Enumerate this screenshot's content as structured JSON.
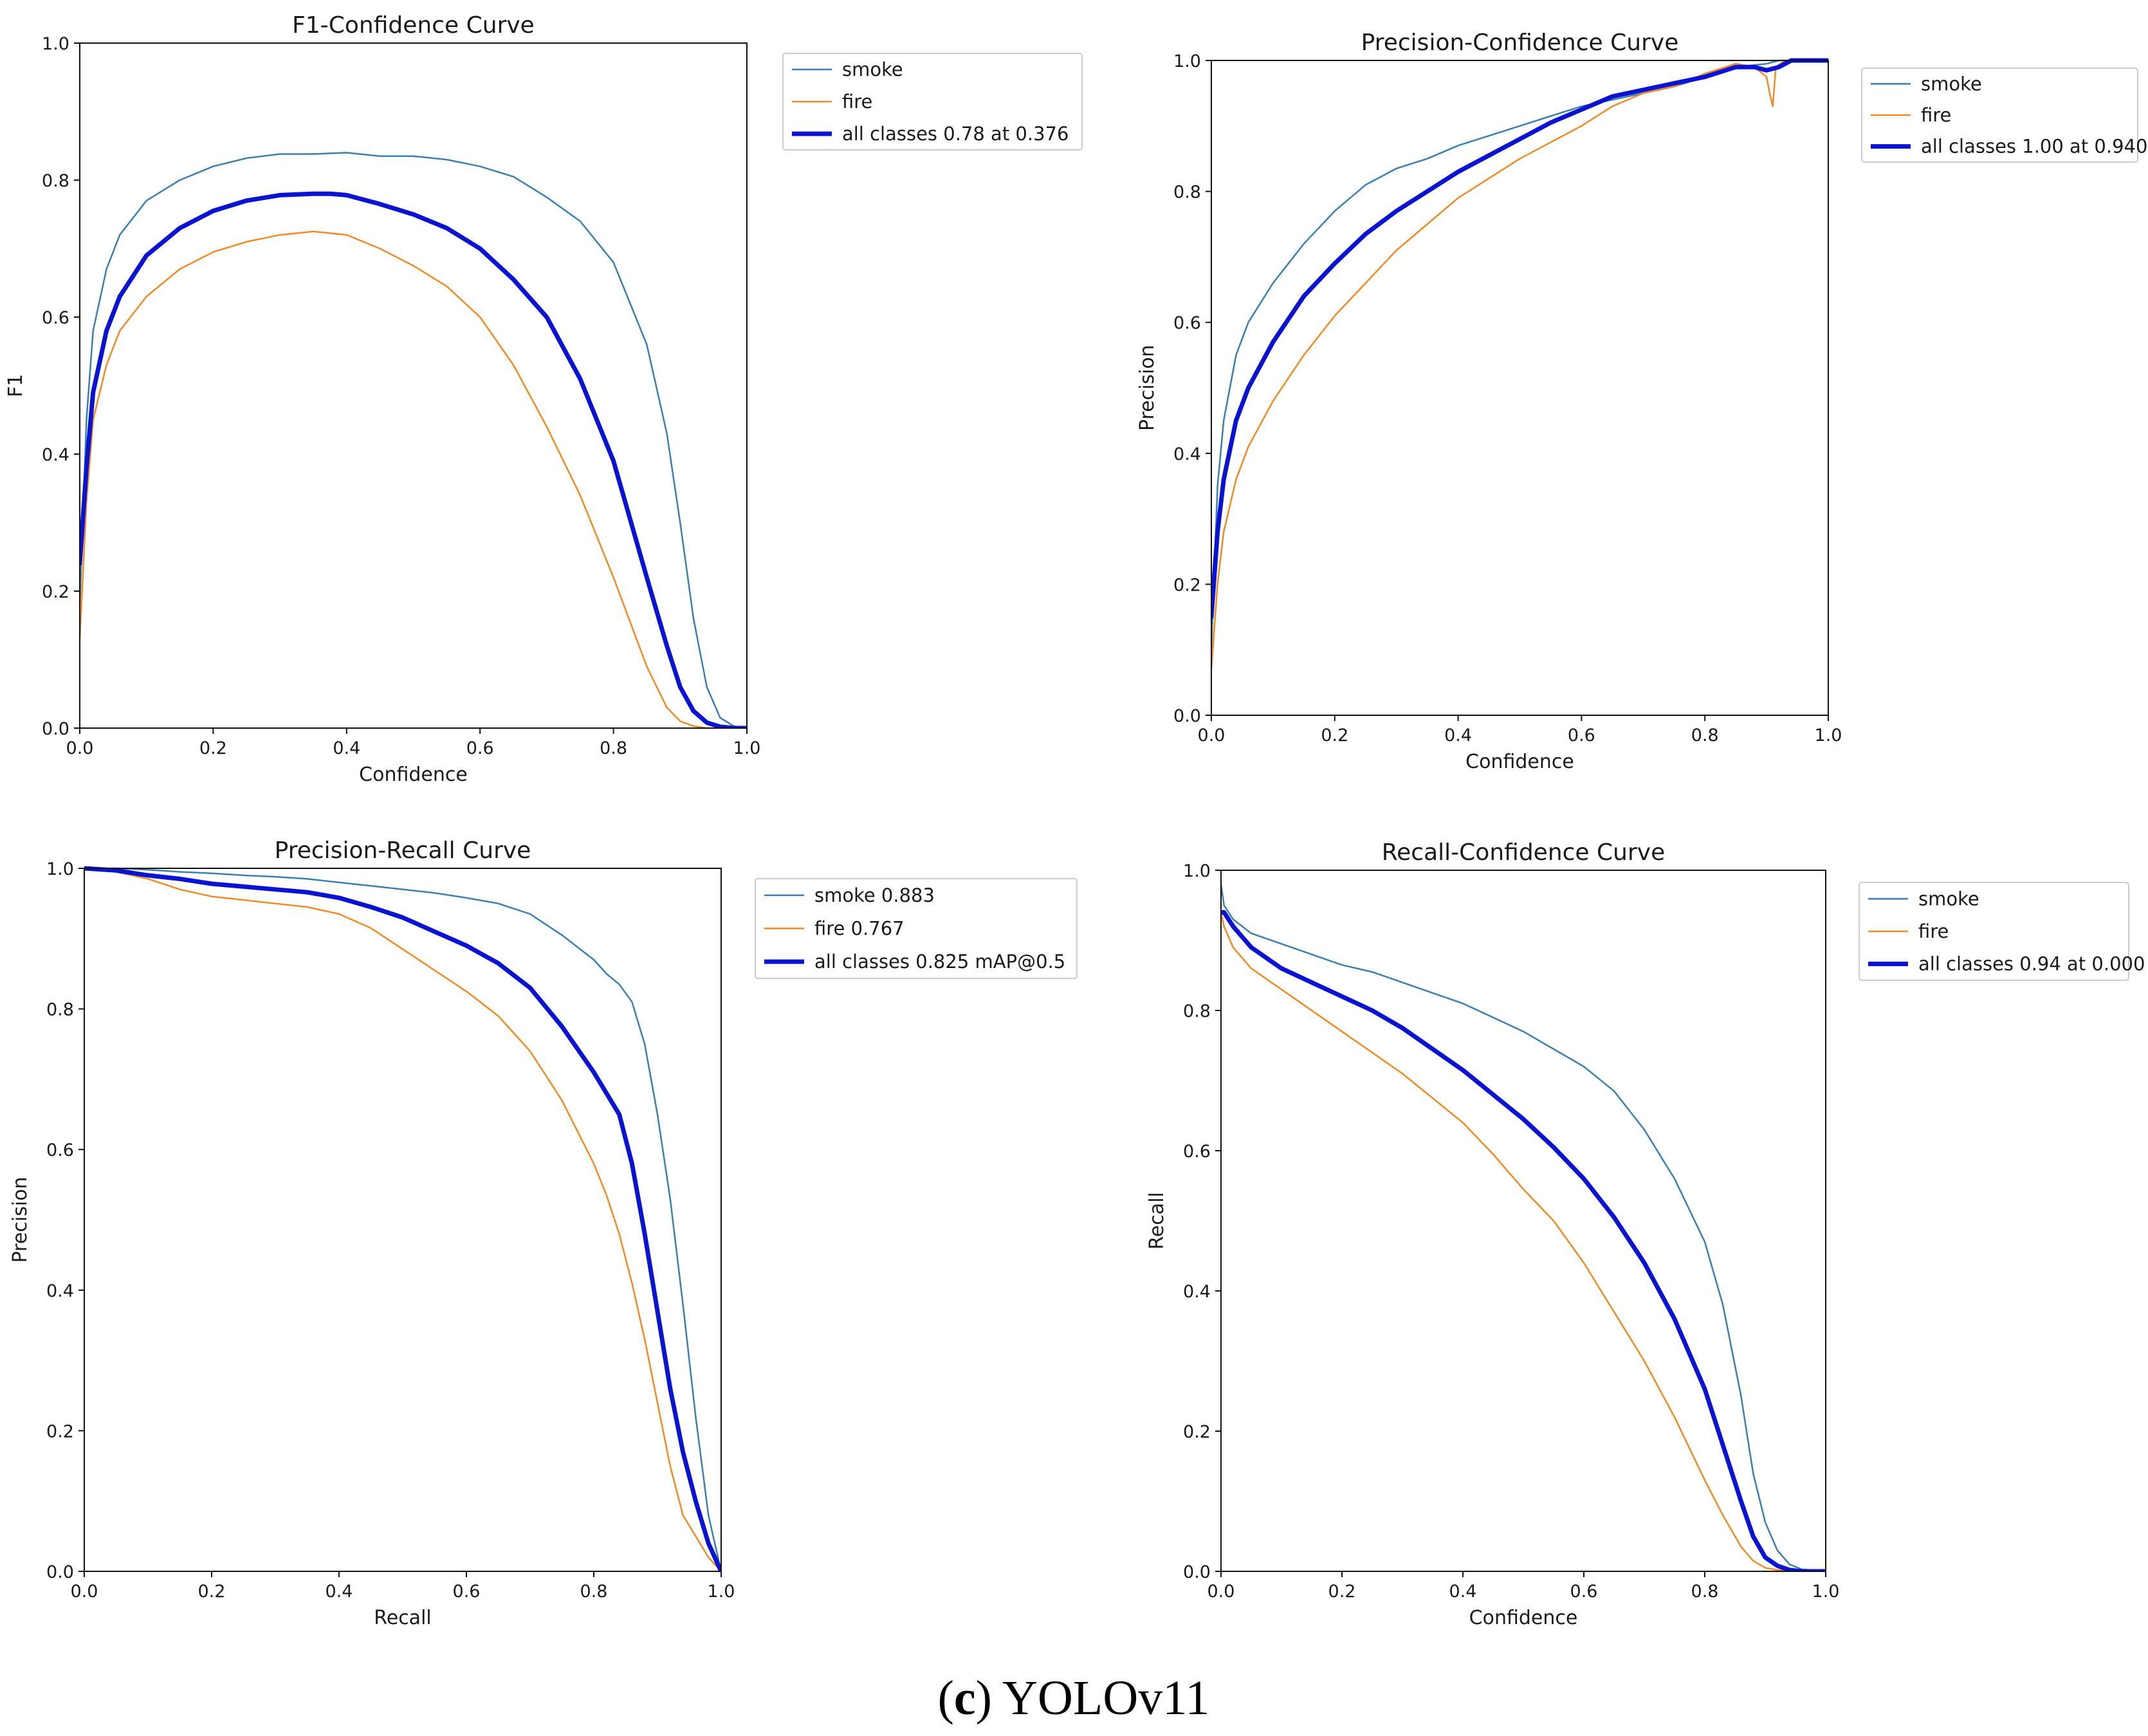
{
  "caption": {
    "open": "(",
    "letter": "c",
    "rest": ") YOLOv11"
  },
  "colors": {
    "smoke": "#3b7fb0",
    "fire": "#f08a24",
    "all_classes": "#0a14d0",
    "axis": "#111111"
  },
  "chart_data": [
    {
      "id": "f1",
      "type": "line",
      "title": "F1-Confidence Curve",
      "xlabel": "Confidence",
      "ylabel": "F1",
      "xlim": [
        0,
        1
      ],
      "ylim": [
        0,
        1
      ],
      "xticks": [
        "0.0",
        "0.2",
        "0.4",
        "0.6",
        "0.8",
        "1.0"
      ],
      "yticks": [
        "0.0",
        "0.2",
        "0.4",
        "0.6",
        "0.8",
        "1.0"
      ],
      "legend_position": "outside-top-right",
      "series": [
        {
          "name": "smoke",
          "legend": "smoke",
          "color_key": "smoke",
          "width": 2.5,
          "x": [
            0,
            0.01,
            0.02,
            0.04,
            0.06,
            0.1,
            0.15,
            0.2,
            0.25,
            0.3,
            0.35,
            0.4,
            0.45,
            0.5,
            0.55,
            0.6,
            0.65,
            0.7,
            0.75,
            0.8,
            0.85,
            0.88,
            0.9,
            0.92,
            0.94,
            0.96,
            0.98,
            1.0
          ],
          "y": [
            0.18,
            0.45,
            0.58,
            0.67,
            0.72,
            0.77,
            0.8,
            0.82,
            0.832,
            0.838,
            0.838,
            0.84,
            0.835,
            0.835,
            0.83,
            0.82,
            0.805,
            0.775,
            0.74,
            0.68,
            0.56,
            0.43,
            0.3,
            0.16,
            0.06,
            0.015,
            0.003,
            0
          ]
        },
        {
          "name": "fire",
          "legend": "fire",
          "color_key": "fire",
          "width": 2.5,
          "x": [
            0,
            0.01,
            0.02,
            0.04,
            0.06,
            0.1,
            0.15,
            0.2,
            0.25,
            0.3,
            0.35,
            0.4,
            0.45,
            0.5,
            0.55,
            0.6,
            0.65,
            0.7,
            0.75,
            0.8,
            0.85,
            0.88,
            0.9,
            0.92,
            0.94,
            0.96,
            1.0
          ],
          "y": [
            0.13,
            0.33,
            0.45,
            0.53,
            0.58,
            0.63,
            0.67,
            0.695,
            0.71,
            0.72,
            0.725,
            0.72,
            0.7,
            0.675,
            0.645,
            0.6,
            0.53,
            0.44,
            0.34,
            0.22,
            0.09,
            0.03,
            0.01,
            0.003,
            0,
            0,
            0
          ]
        },
        {
          "name": "all classes",
          "legend": "all classes 0.78 at 0.376",
          "color_key": "all_classes",
          "width": 7,
          "x": [
            0,
            0.01,
            0.02,
            0.04,
            0.06,
            0.1,
            0.15,
            0.2,
            0.25,
            0.3,
            0.35,
            0.376,
            0.4,
            0.45,
            0.5,
            0.55,
            0.6,
            0.65,
            0.7,
            0.75,
            0.8,
            0.85,
            0.88,
            0.9,
            0.92,
            0.94,
            0.96,
            0.98,
            1.0
          ],
          "y": [
            0.24,
            0.38,
            0.49,
            0.58,
            0.63,
            0.69,
            0.73,
            0.755,
            0.77,
            0.778,
            0.78,
            0.78,
            0.778,
            0.765,
            0.75,
            0.73,
            0.7,
            0.655,
            0.6,
            0.51,
            0.39,
            0.22,
            0.12,
            0.06,
            0.025,
            0.008,
            0.002,
            0,
            0
          ]
        }
      ]
    },
    {
      "id": "precision",
      "type": "line",
      "title": "Precision-Confidence Curve",
      "xlabel": "Confidence",
      "ylabel": "Precision",
      "xlim": [
        0,
        1
      ],
      "ylim": [
        0,
        1
      ],
      "xticks": [
        "0.0",
        "0.2",
        "0.4",
        "0.6",
        "0.8",
        "1.0"
      ],
      "yticks": [
        "0.0",
        "0.2",
        "0.4",
        "0.6",
        "0.8",
        "1.0"
      ],
      "legend_position": "outside-top-right",
      "series": [
        {
          "name": "smoke",
          "legend": "smoke",
          "color_key": "smoke",
          "width": 2.5,
          "x": [
            0,
            0.01,
            0.02,
            0.04,
            0.06,
            0.1,
            0.15,
            0.2,
            0.25,
            0.3,
            0.35,
            0.4,
            0.45,
            0.5,
            0.55,
            0.6,
            0.65,
            0.7,
            0.75,
            0.8,
            0.85,
            0.9,
            0.92,
            0.94,
            1.0
          ],
          "y": [
            0.1,
            0.35,
            0.45,
            0.55,
            0.6,
            0.66,
            0.72,
            0.77,
            0.81,
            0.835,
            0.85,
            0.87,
            0.885,
            0.9,
            0.915,
            0.93,
            0.94,
            0.95,
            0.96,
            0.975,
            0.99,
            0.995,
            1.0,
            1.0,
            1.0
          ]
        },
        {
          "name": "fire",
          "legend": "fire",
          "color_key": "fire",
          "width": 2.5,
          "x": [
            0,
            0.01,
            0.02,
            0.04,
            0.06,
            0.1,
            0.15,
            0.2,
            0.25,
            0.3,
            0.35,
            0.4,
            0.45,
            0.5,
            0.55,
            0.6,
            0.65,
            0.7,
            0.75,
            0.8,
            0.85,
            0.88,
            0.9,
            0.905,
            0.91,
            0.915,
            0.93,
            1.0
          ],
          "y": [
            0.07,
            0.2,
            0.28,
            0.36,
            0.41,
            0.48,
            0.55,
            0.61,
            0.66,
            0.71,
            0.75,
            0.79,
            0.82,
            0.85,
            0.875,
            0.9,
            0.93,
            0.95,
            0.96,
            0.98,
            0.995,
            0.99,
            0.975,
            0.95,
            0.93,
            0.99,
            1.0,
            1.0
          ]
        },
        {
          "name": "all classes",
          "legend": "all classes 1.00 at 0.940",
          "color_key": "all_classes",
          "width": 7,
          "x": [
            0,
            0.01,
            0.02,
            0.04,
            0.06,
            0.1,
            0.15,
            0.2,
            0.25,
            0.3,
            0.35,
            0.4,
            0.45,
            0.5,
            0.55,
            0.6,
            0.65,
            0.7,
            0.75,
            0.8,
            0.85,
            0.88,
            0.9,
            0.92,
            0.94,
            1.0
          ],
          "y": [
            0.15,
            0.28,
            0.36,
            0.45,
            0.5,
            0.57,
            0.64,
            0.69,
            0.735,
            0.77,
            0.8,
            0.83,
            0.855,
            0.88,
            0.905,
            0.925,
            0.945,
            0.955,
            0.965,
            0.975,
            0.99,
            0.99,
            0.985,
            0.99,
            1.0,
            1.0
          ]
        }
      ]
    },
    {
      "id": "pr",
      "type": "line",
      "title": "Precision-Recall Curve",
      "xlabel": "Recall",
      "ylabel": "Precision",
      "xlim": [
        0,
        1
      ],
      "ylim": [
        0,
        1
      ],
      "xticks": [
        "0.0",
        "0.2",
        "0.4",
        "0.6",
        "0.8",
        "1.0"
      ],
      "yticks": [
        "0.0",
        "0.2",
        "0.4",
        "0.6",
        "0.8",
        "1.0"
      ],
      "legend_position": "outside-top-right",
      "series": [
        {
          "name": "smoke",
          "legend": "smoke 0.883",
          "color_key": "smoke",
          "width": 2.5,
          "x": [
            0,
            0.05,
            0.1,
            0.15,
            0.2,
            0.25,
            0.3,
            0.35,
            0.4,
            0.45,
            0.5,
            0.55,
            0.6,
            0.65,
            0.7,
            0.75,
            0.8,
            0.82,
            0.84,
            0.86,
            0.88,
            0.9,
            0.92,
            0.94,
            0.96,
            0.98,
            1.0
          ],
          "y": [
            1.0,
            1.0,
            0.998,
            0.995,
            0.993,
            0.99,
            0.988,
            0.985,
            0.98,
            0.975,
            0.97,
            0.965,
            0.958,
            0.95,
            0.935,
            0.905,
            0.87,
            0.85,
            0.835,
            0.81,
            0.75,
            0.65,
            0.53,
            0.38,
            0.22,
            0.08,
            0
          ]
        },
        {
          "name": "fire",
          "legend": "fire 0.767",
          "color_key": "fire",
          "width": 2.5,
          "x": [
            0,
            0.05,
            0.1,
            0.15,
            0.2,
            0.25,
            0.3,
            0.35,
            0.4,
            0.45,
            0.5,
            0.55,
            0.6,
            0.65,
            0.7,
            0.75,
            0.8,
            0.82,
            0.84,
            0.86,
            0.88,
            0.9,
            0.92,
            0.94,
            0.96,
            0.98,
            1.0
          ],
          "y": [
            1.0,
            0.995,
            0.985,
            0.97,
            0.96,
            0.955,
            0.95,
            0.945,
            0.935,
            0.915,
            0.885,
            0.855,
            0.825,
            0.79,
            0.74,
            0.67,
            0.58,
            0.535,
            0.48,
            0.41,
            0.33,
            0.24,
            0.15,
            0.08,
            0.05,
            0.02,
            0
          ]
        },
        {
          "name": "all classes",
          "legend": "all classes 0.825 mAP@0.5",
          "color_key": "all_classes",
          "width": 7,
          "x": [
            0,
            0.05,
            0.1,
            0.15,
            0.2,
            0.25,
            0.3,
            0.35,
            0.4,
            0.45,
            0.5,
            0.55,
            0.6,
            0.65,
            0.7,
            0.75,
            0.8,
            0.82,
            0.84,
            0.86,
            0.88,
            0.9,
            0.92,
            0.94,
            0.96,
            0.98,
            1.0
          ],
          "y": [
            1.0,
            0.997,
            0.99,
            0.985,
            0.978,
            0.974,
            0.97,
            0.966,
            0.958,
            0.945,
            0.93,
            0.91,
            0.89,
            0.865,
            0.83,
            0.775,
            0.71,
            0.68,
            0.65,
            0.58,
            0.48,
            0.37,
            0.26,
            0.17,
            0.1,
            0.04,
            0
          ]
        }
      ]
    },
    {
      "id": "recall",
      "type": "line",
      "title": "Recall-Confidence Curve",
      "xlabel": "Confidence",
      "ylabel": "Recall",
      "xlim": [
        0,
        1
      ],
      "ylim": [
        0,
        1
      ],
      "xticks": [
        "0.0",
        "0.2",
        "0.4",
        "0.6",
        "0.8",
        "1.0"
      ],
      "yticks": [
        "0.0",
        "0.2",
        "0.4",
        "0.6",
        "0.8",
        "1.0"
      ],
      "legend_position": "outside-top-right",
      "series": [
        {
          "name": "smoke",
          "legend": "smoke",
          "color_key": "smoke",
          "width": 2.5,
          "x": [
            0,
            0.005,
            0.02,
            0.05,
            0.1,
            0.15,
            0.2,
            0.25,
            0.3,
            0.35,
            0.4,
            0.45,
            0.5,
            0.55,
            0.6,
            0.65,
            0.7,
            0.75,
            0.8,
            0.83,
            0.86,
            0.88,
            0.9,
            0.92,
            0.94,
            0.96,
            1.0
          ],
          "y": [
            0.98,
            0.95,
            0.93,
            0.91,
            0.895,
            0.88,
            0.865,
            0.855,
            0.84,
            0.825,
            0.81,
            0.79,
            0.77,
            0.745,
            0.72,
            0.685,
            0.63,
            0.56,
            0.47,
            0.38,
            0.25,
            0.14,
            0.07,
            0.03,
            0.01,
            0.003,
            0
          ]
        },
        {
          "name": "fire",
          "legend": "fire",
          "color_key": "fire",
          "width": 2.5,
          "x": [
            0,
            0.005,
            0.02,
            0.05,
            0.1,
            0.15,
            0.2,
            0.25,
            0.3,
            0.35,
            0.4,
            0.45,
            0.5,
            0.55,
            0.6,
            0.65,
            0.7,
            0.75,
            0.8,
            0.83,
            0.86,
            0.88,
            0.9,
            0.92,
            0.94,
            1.0
          ],
          "y": [
            0.94,
            0.92,
            0.89,
            0.86,
            0.83,
            0.8,
            0.77,
            0.74,
            0.71,
            0.675,
            0.64,
            0.595,
            0.545,
            0.5,
            0.44,
            0.37,
            0.3,
            0.22,
            0.13,
            0.08,
            0.035,
            0.015,
            0.005,
            0.002,
            0,
            0
          ]
        },
        {
          "name": "all classes",
          "legend": "all classes 0.94 at 0.000",
          "color_key": "all_classes",
          "width": 7,
          "x": [
            0,
            0.005,
            0.02,
            0.05,
            0.1,
            0.15,
            0.2,
            0.25,
            0.3,
            0.35,
            0.4,
            0.45,
            0.5,
            0.55,
            0.6,
            0.65,
            0.7,
            0.75,
            0.8,
            0.83,
            0.86,
            0.88,
            0.9,
            0.92,
            0.94,
            0.96,
            1.0
          ],
          "y": [
            0.94,
            0.94,
            0.92,
            0.89,
            0.86,
            0.84,
            0.82,
            0.8,
            0.775,
            0.745,
            0.715,
            0.68,
            0.645,
            0.605,
            0.56,
            0.505,
            0.44,
            0.36,
            0.26,
            0.18,
            0.1,
            0.05,
            0.02,
            0.008,
            0.002,
            0,
            0
          ]
        }
      ]
    }
  ]
}
